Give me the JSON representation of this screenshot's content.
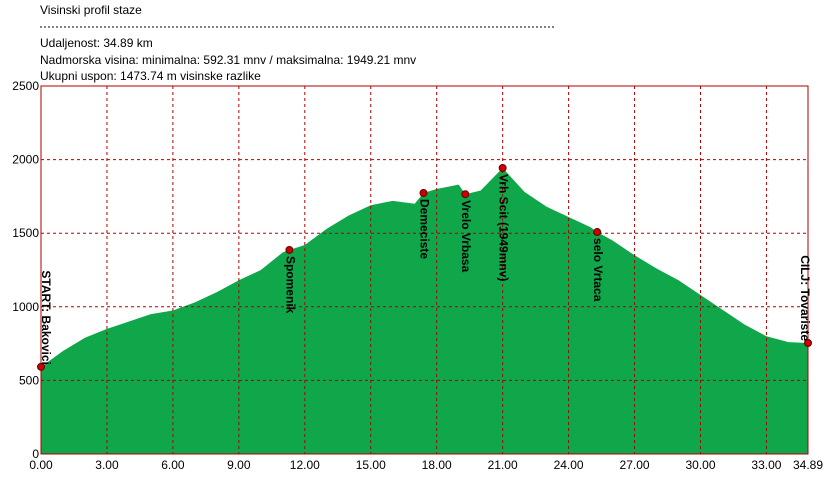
{
  "chart_data": {
    "type": "area",
    "title": "Visinski profil staze",
    "subtitle_lines": [
      "Udaljenost: 34.89 km",
      "Nadmorska visina:  minimalna: 592.31 mnv   /  maksimalna: 1949.21 mnv",
      "Ukupni uspon: 1473.74 m visinske razlike"
    ],
    "x": [
      0,
      1,
      2,
      3,
      4,
      5,
      6,
      7,
      8,
      9,
      10,
      11,
      11.3,
      12,
      13,
      14,
      15,
      16,
      17,
      17.4,
      18,
      19,
      19.3,
      20,
      21,
      22,
      23,
      24,
      25,
      25.3,
      26,
      27,
      28,
      29,
      30,
      31,
      32,
      33,
      34,
      34.89
    ],
    "series": [
      {
        "color": "#10a64a",
        "values": [
          592,
          700,
          790,
          850,
          900,
          950,
          975,
          1030,
          1100,
          1180,
          1250,
          1370,
          1386,
          1420,
          1530,
          1620,
          1690,
          1720,
          1700,
          1773,
          1800,
          1830,
          1765,
          1790,
          1943,
          1780,
          1680,
          1610,
          1540,
          1508,
          1450,
          1350,
          1260,
          1180,
          1080,
          980,
          880,
          800,
          760,
          754
        ]
      }
    ],
    "waypoints": [
      {
        "name": "START: Bakovici",
        "x": 0,
        "y": 592
      },
      {
        "name": "Spomenik",
        "x": 11.3,
        "y": 1386
      },
      {
        "name": "Demeciste",
        "x": 17.4,
        "y": 1773
      },
      {
        "name": "Vrelo Vrbasa",
        "x": 19.3,
        "y": 1765
      },
      {
        "name": "Vrh Scit (1949mnv)",
        "x": 21,
        "y": 1943
      },
      {
        "name": "selo Vrtaca",
        "x": 25.3,
        "y": 1508
      },
      {
        "name": "CILJ: Tovariste",
        "x": 34.89,
        "y": 754
      }
    ],
    "marker_color": "#cc0000",
    "xlim": [
      0,
      34.89
    ],
    "xticks": [
      {
        "value": 0,
        "label": "0.00"
      },
      {
        "value": 3,
        "label": "3.00"
      },
      {
        "value": 6,
        "label": "6.00"
      },
      {
        "value": 9,
        "label": "9.00"
      },
      {
        "value": 12,
        "label": "12.00"
      },
      {
        "value": 15,
        "label": "15.00"
      },
      {
        "value": 18,
        "label": "18.00"
      },
      {
        "value": 21,
        "label": "21.00"
      },
      {
        "value": 24,
        "label": "24.00"
      },
      {
        "value": 27,
        "label": "27.00"
      },
      {
        "value": 30,
        "label": "30.00"
      },
      {
        "value": 33,
        "label": "33.00"
      },
      {
        "value": 34.89,
        "label": "34.89"
      }
    ],
    "ylim": [
      0,
      2500
    ],
    "yticks": [
      0,
      500,
      1000,
      1500,
      2000,
      2500
    ],
    "grid": true
  }
}
